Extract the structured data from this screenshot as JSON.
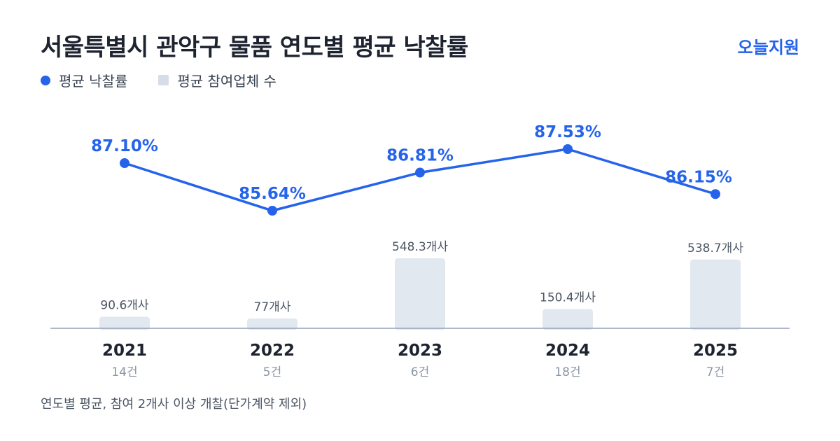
{
  "title": "서울특별시 관악구 물품 연도별 평균 낙찰률",
  "brand": "오늘지원",
  "legend": {
    "rate": "평균 낙찰률",
    "bidders": "평균 참여업체 수"
  },
  "footnote": "연도별 평균, 참여 2개사 이상 개찰(단가계약 제외)",
  "colors": {
    "line": "#2563eb",
    "bar": "#e2e8f0",
    "axis": "#94a3b8",
    "year": "#1e2330",
    "count": "#8b95a3",
    "bar_label": "#4b5563"
  },
  "chart_data": {
    "type": "bar",
    "categories": [
      "2021",
      "2022",
      "2023",
      "2024",
      "2025"
    ],
    "sub_labels": [
      "14건",
      "5건",
      "6건",
      "18건",
      "7건"
    ],
    "series": [
      {
        "name": "평균 낙찰률",
        "type": "line",
        "values": [
          87.1,
          85.64,
          86.81,
          87.53,
          86.15
        ],
        "labels": [
          "87.10%",
          "85.64%",
          "86.81%",
          "87.53%",
          "86.15%"
        ]
      },
      {
        "name": "평균 참여업체 수",
        "type": "bar",
        "values": [
          90.6,
          77,
          548.3,
          150.4,
          538.7
        ],
        "labels": [
          "90.6개사",
          "77개사",
          "548.3개사",
          "150.4개사",
          "538.7개사"
        ]
      }
    ],
    "legend_position": "top-left",
    "grid": false
  }
}
